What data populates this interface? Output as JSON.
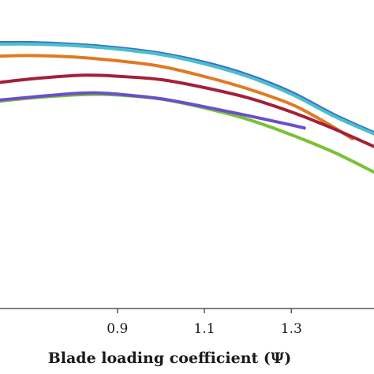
{
  "chart_data": {
    "type": "line",
    "title": "",
    "xlabel": "Blade loading coefficient (Ψ)",
    "ylabel": "",
    "xlim": [
      0.63,
      1.49
    ],
    "ylim": [
      0.0,
      1.0
    ],
    "grid": false,
    "x_ticks": [
      "0.9",
      "1.1",
      "1.3"
    ],
    "x_tick_values": [
      0.9,
      1.1,
      1.3
    ],
    "series": [
      {
        "color": "#3a6fd0",
        "x": [
          0.63,
          0.7,
          0.8,
          0.9,
          1.0,
          1.1,
          1.2,
          1.3,
          1.4,
          1.49
        ],
        "y": [
          0.862,
          0.862,
          0.856,
          0.845,
          0.827,
          0.798,
          0.757,
          0.701,
          0.627,
          0.57
        ]
      },
      {
        "color": "#4cbfc8",
        "x": [
          0.63,
          0.7,
          0.8,
          0.9,
          1.0,
          1.1,
          1.2,
          1.3,
          1.4,
          1.49
        ],
        "y": [
          0.857,
          0.857,
          0.852,
          0.841,
          0.823,
          0.793,
          0.752,
          0.695,
          0.622,
          0.566
        ]
      },
      {
        "color": "#e07a22",
        "x": [
          0.63,
          0.7,
          0.8,
          0.9,
          1.0,
          1.1,
          1.2,
          1.3,
          1.38,
          1.44
        ],
        "y": [
          0.818,
          0.82,
          0.815,
          0.803,
          0.785,
          0.752,
          0.712,
          0.662,
          0.602,
          0.55
        ]
      },
      {
        "color": "#a3203a",
        "x": [
          0.63,
          0.7,
          0.8,
          0.85,
          0.9,
          1.0,
          1.1,
          1.2,
          1.3,
          1.4,
          1.49
        ],
        "y": [
          0.733,
          0.744,
          0.755,
          0.756,
          0.753,
          0.742,
          0.716,
          0.683,
          0.637,
          0.581,
          0.525
        ]
      },
      {
        "color": "#7ac231",
        "x": [
          0.63,
          0.7,
          0.8,
          0.85,
          0.9,
          1.0,
          1.1,
          1.2,
          1.3,
          1.4,
          1.49
        ],
        "y": [
          0.672,
          0.682,
          0.692,
          0.694,
          0.692,
          0.679,
          0.65,
          0.613,
          0.563,
          0.505,
          0.442
        ]
      },
      {
        "color": "#6a4fcc",
        "x": [
          0.63,
          0.7,
          0.8,
          0.85,
          0.9,
          1.0,
          1.1,
          1.2,
          1.3,
          1.33
        ],
        "y": [
          0.676,
          0.685,
          0.697,
          0.699,
          0.695,
          0.68,
          0.654,
          0.625,
          0.595,
          0.585
        ]
      }
    ]
  }
}
